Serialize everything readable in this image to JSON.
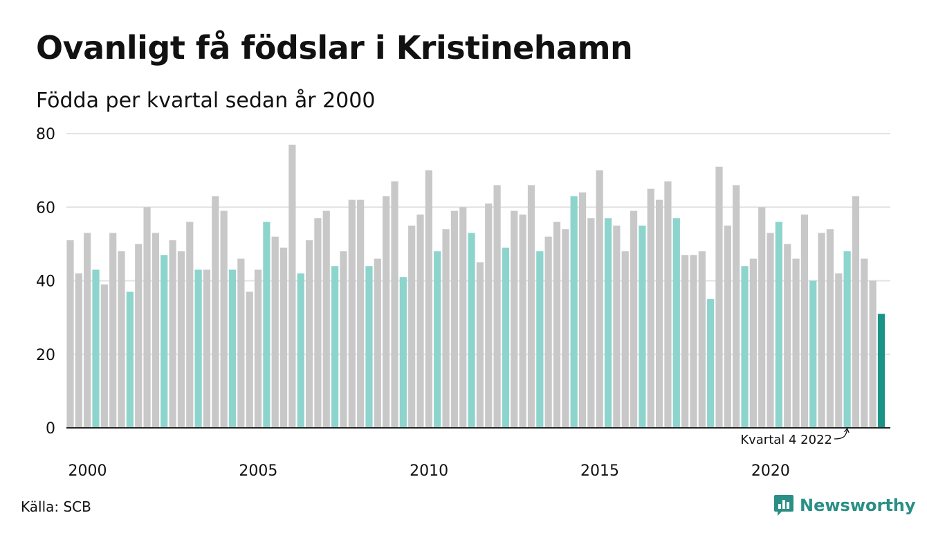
{
  "title": "Ovanligt få födslar i Kristinehamn",
  "subtitle": "Födda per kvartal sedan år 2000",
  "source": "Källa: SCB",
  "brand": {
    "name": "Newsworthy",
    "icon": "bar-chart-logo-icon",
    "color": "#2a8f84"
  },
  "colors": {
    "default_bar": "#c8c8c8",
    "quarter4_bar": "#8dd4cd",
    "latest_bar": "#1a9488",
    "grid": "#e2e2e2",
    "axis": "#222222"
  },
  "chart_data": {
    "type": "bar",
    "title": "Ovanligt få födslar i Kristinehamn",
    "subtitle": "Födda per kvartal sedan år 2000",
    "xlabel": "",
    "ylabel": "",
    "ylim": [
      0,
      80
    ],
    "y_ticks": [
      0,
      20,
      40,
      60,
      80
    ],
    "x_tick_labels": [
      "2000",
      "2005",
      "2010",
      "2015",
      "2020"
    ],
    "grid": true,
    "highlight": "Kvartal 4 highlighted",
    "annotation": {
      "text": "Kvartal 4 2022",
      "target_index": 91
    },
    "values": [
      51,
      42,
      53,
      43,
      39,
      53,
      48,
      37,
      50,
      60,
      53,
      47,
      51,
      48,
      56,
      43,
      43,
      63,
      59,
      43,
      46,
      37,
      43,
      56,
      52,
      49,
      77,
      42,
      51,
      57,
      59,
      44,
      48,
      62,
      62,
      44,
      46,
      63,
      67,
      41,
      55,
      58,
      70,
      48,
      54,
      59,
      60,
      53,
      45,
      61,
      66,
      49,
      59,
      58,
      66,
      48,
      52,
      56,
      54,
      63,
      64,
      57,
      70,
      57,
      55,
      48,
      59,
      55,
      65,
      62,
      67,
      57,
      47,
      47,
      48,
      35,
      71,
      55,
      66,
      44,
      46,
      60,
      53,
      56,
      50,
      46,
      58,
      40,
      53,
      54,
      42,
      48,
      63,
      46,
      40,
      31
    ]
  }
}
